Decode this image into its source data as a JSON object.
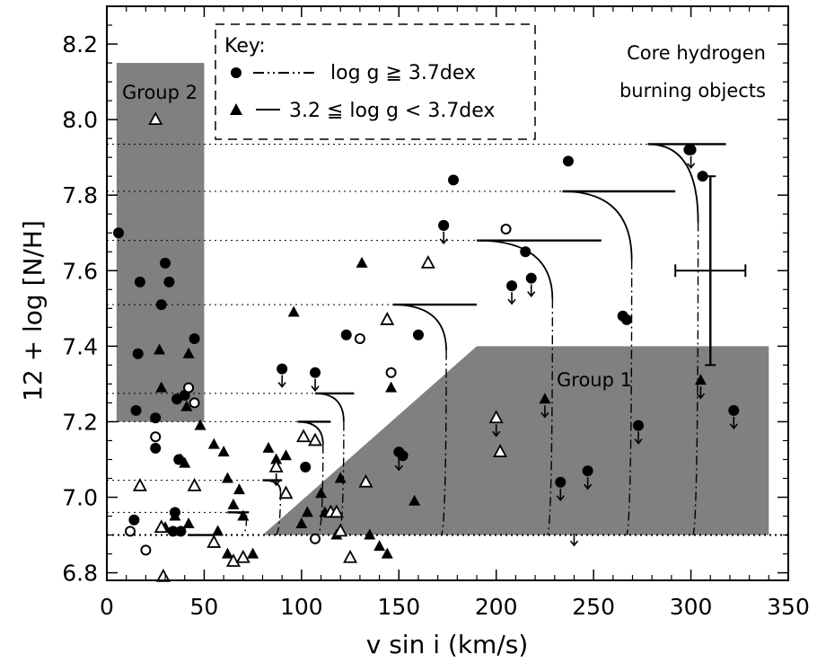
{
  "chart_data": {
    "type": "scatter",
    "xlabel": "v sin i (km/s)",
    "ylabel": "12 + log [N/H]",
    "xlim": [
      0,
      350
    ],
    "ylim": [
      6.78,
      8.3
    ],
    "xticks": [
      0,
      50,
      100,
      150,
      200,
      250,
      300,
      350
    ],
    "yticks": [
      6.8,
      7.0,
      7.2,
      7.4,
      7.6,
      7.8,
      8.0,
      8.2
    ],
    "xtick_labels": [
      "0",
      "50",
      "100",
      "150",
      "200",
      "250",
      "300",
      "350"
    ],
    "ytick_labels": [
      "6.8",
      "7.0",
      "7.2",
      "7.4",
      "7.6",
      "7.8",
      "8.0",
      "8.2"
    ],
    "annotations": {
      "group1": "Group 1",
      "group2": "Group 2",
      "corner_line1": "Core hydrogen",
      "corner_line2": "burning objects"
    },
    "legend": {
      "title": "Key:",
      "entry1": "log g ≧ 3.7dex",
      "entry2": "3.2 ≦ log g < 3.7dex",
      "placement": "top-center"
    },
    "colors": {
      "shade": "#808080",
      "ink": "#000000"
    },
    "group2_box": {
      "x": [
        5,
        50
      ],
      "y": [
        7.2,
        8.15
      ]
    },
    "group1_region": [
      [
        80,
        6.9
      ],
      [
        340,
        6.9
      ],
      [
        340,
        7.4
      ],
      [
        190,
        7.4
      ]
    ],
    "baseline_y": 6.9,
    "error_bar": {
      "x": 310,
      "y": 7.6,
      "xerr": 18,
      "y_low": 7.35,
      "y_high": 7.85
    },
    "tracks": [
      {
        "x_start": 42,
        "y": 6.9,
        "x_end": 55
      },
      {
        "x_start": 62,
        "y": 6.96,
        "x_end": 73
      },
      {
        "x_start": 80,
        "y": 7.045,
        "x_end": 90
      },
      {
        "x_start": 98,
        "y": 7.2,
        "x_end": 115
      },
      {
        "x_start": 107,
        "y": 7.275,
        "x_end": 127
      },
      {
        "x_start": 147,
        "y": 7.51,
        "x_end": 190
      },
      {
        "x_start": 190,
        "y": 7.68,
        "x_end": 254
      },
      {
        "x_start": 234,
        "y": 7.81,
        "x_end": 292
      },
      {
        "x_start": 278,
        "y": 7.935,
        "x_end": 318
      }
    ],
    "points_circle_filled": [
      [
        6,
        7.7
      ],
      [
        15,
        7.23
      ],
      [
        16,
        7.38
      ],
      [
        17,
        7.57
      ],
      [
        25,
        7.21
      ],
      [
        25,
        7.13
      ],
      [
        28,
        7.51
      ],
      [
        30,
        7.62
      ],
      [
        32,
        7.57
      ],
      [
        36,
        7.26
      ],
      [
        37,
        7.1
      ],
      [
        35,
        6.96
      ],
      [
        14,
        6.94
      ],
      [
        45,
        7.42
      ],
      [
        34,
        6.91
      ],
      [
        38,
        6.91
      ],
      [
        102,
        7.08
      ],
      [
        123,
        7.43
      ],
      [
        152,
        7.11
      ],
      [
        160,
        7.43
      ],
      [
        178,
        7.84
      ],
      [
        173,
        7.72
      ],
      [
        215,
        7.65
      ],
      [
        237,
        7.89
      ],
      [
        265,
        7.48
      ],
      [
        267,
        7.47
      ],
      [
        299,
        7.92
      ],
      [
        306,
        7.85
      ],
      [
        40,
        7.27
      ]
    ],
    "points_circle_filled_upper_limit": [
      [
        90,
        7.34
      ],
      [
        107,
        7.33
      ],
      [
        173,
        7.72
      ],
      [
        208,
        7.56
      ],
      [
        218,
        7.58
      ],
      [
        233,
        7.04
      ],
      [
        247,
        7.07
      ],
      [
        273,
        7.19
      ],
      [
        300,
        7.92
      ],
      [
        322,
        7.23
      ],
      [
        150,
        7.12
      ]
    ],
    "points_circle_open": [
      [
        12,
        6.91
      ],
      [
        25,
        7.16
      ],
      [
        42,
        7.29
      ],
      [
        45,
        7.25
      ],
      [
        130,
        7.42
      ],
      [
        146,
        7.33
      ],
      [
        205,
        7.71
      ],
      [
        107,
        6.89
      ],
      [
        20,
        6.86
      ]
    ],
    "points_triangle_filled": [
      [
        27,
        7.39
      ],
      [
        28,
        7.29
      ],
      [
        42,
        7.38
      ],
      [
        41,
        7.24
      ],
      [
        38,
        7.1
      ],
      [
        40,
        7.09
      ],
      [
        30,
        6.92
      ],
      [
        35,
        6.95
      ],
      [
        42,
        6.93
      ],
      [
        48,
        7.19
      ],
      [
        55,
        7.14
      ],
      [
        60,
        7.12
      ],
      [
        62,
        7.05
      ],
      [
        68,
        7.02
      ],
      [
        65,
        6.98
      ],
      [
        57,
        6.91
      ],
      [
        62,
        6.85
      ],
      [
        65,
        6.83
      ],
      [
        70,
        6.95
      ],
      [
        75,
        6.85
      ],
      [
        83,
        7.13
      ],
      [
        87,
        7.1
      ],
      [
        92,
        7.11
      ],
      [
        96,
        7.49
      ],
      [
        100,
        6.93
      ],
      [
        103,
        6.96
      ],
      [
        110,
        7.01
      ],
      [
        112,
        6.96
      ],
      [
        118,
        6.9
      ],
      [
        120,
        7.05
      ],
      [
        131,
        7.62
      ],
      [
        135,
        6.9
      ],
      [
        140,
        6.87
      ],
      [
        144,
        6.85
      ],
      [
        146,
        7.29
      ],
      [
        158,
        6.99
      ],
      [
        225,
        7.26
      ],
      [
        305,
        7.31
      ]
    ],
    "points_triangle_open": [
      [
        25,
        8.0
      ],
      [
        17,
        7.03
      ],
      [
        28,
        6.92
      ],
      [
        45,
        7.03
      ],
      [
        55,
        6.88
      ],
      [
        65,
        6.83
      ],
      [
        70,
        6.84
      ],
      [
        87,
        7.08
      ],
      [
        92,
        7.01
      ],
      [
        101,
        7.16
      ],
      [
        107,
        7.15
      ],
      [
        115,
        6.96
      ],
      [
        118,
        6.96
      ],
      [
        120,
        6.91
      ],
      [
        125,
        6.84
      ],
      [
        133,
        7.04
      ],
      [
        144,
        7.47
      ],
      [
        165,
        7.62
      ],
      [
        200,
        7.21
      ],
      [
        202,
        7.12
      ],
      [
        29,
        6.79
      ]
    ],
    "points_triangle_upper_limit": [
      [
        87,
        7.08
      ],
      [
        225,
        7.26
      ],
      [
        200,
        7.21
      ],
      [
        240,
        6.92
      ],
      [
        305,
        7.31
      ]
    ]
  }
}
